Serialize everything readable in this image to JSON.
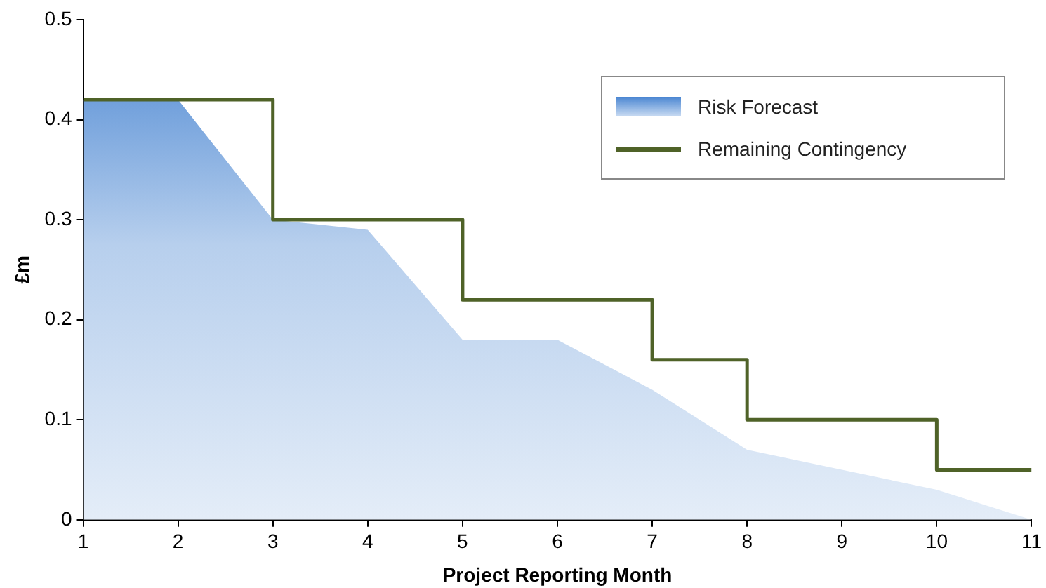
{
  "chart_data": {
    "type": "area",
    "xlabel": "Project Reporting Month",
    "ylabel": "£m",
    "x": [
      1,
      2,
      3,
      4,
      5,
      6,
      7,
      8,
      9,
      10,
      11
    ],
    "xlim": [
      1,
      11
    ],
    "xticks": [
      1,
      2,
      3,
      4,
      5,
      6,
      7,
      8,
      9,
      10,
      11
    ],
    "ylim": [
      0,
      0.5
    ],
    "yticks": [
      0,
      0.1,
      0.2,
      0.3,
      0.4,
      0.5
    ],
    "grid": false,
    "legend": "top right",
    "series": [
      {
        "name": "Risk Forecast",
        "type": "area",
        "color": "#4a86d2",
        "values": [
          0.42,
          0.42,
          0.3,
          0.29,
          0.18,
          0.18,
          0.13,
          0.07,
          0.05,
          0.03,
          0
        ]
      },
      {
        "name": "Remaining Contingency",
        "type": "step",
        "color": "#4f6228",
        "values": [
          0.42,
          0.42,
          0.3,
          0.3,
          0.22,
          0.22,
          0.16,
          0.1,
          0.1,
          0.05,
          0.05
        ]
      }
    ]
  }
}
